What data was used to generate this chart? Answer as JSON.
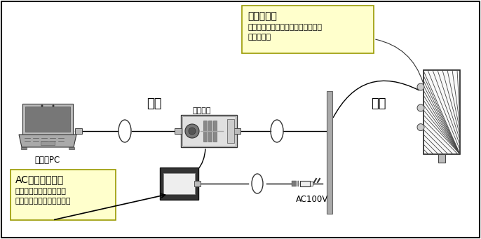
{
  "bg_color": "#ffffff",
  "border_color": "#000000",
  "line_color": "#000000",
  "label_indoor": "屋内",
  "label_outdoor": "屋外",
  "label_pc": "お客様PC",
  "label_indoor_unit": "宅内装置",
  "label_ac": "AC100V",
  "box1_title": "アンテナ部",
  "box1_line1": "（通常はベランダ等屋外に設置され",
  "box1_line2": "ています）",
  "box2_title": "AC電源アダプタ",
  "box2_line1": "（宅内装置と共にお客様",
  "box2_line2": "宅内に設置されています）",
  "box1_bg": "#ffffcc",
  "box2_bg": "#ffffcc",
  "box_edge": "#999900",
  "wall_color": "#aaaaaa",
  "gray_dark": "#666666",
  "gray_mid": "#999999",
  "gray_light": "#cccccc"
}
